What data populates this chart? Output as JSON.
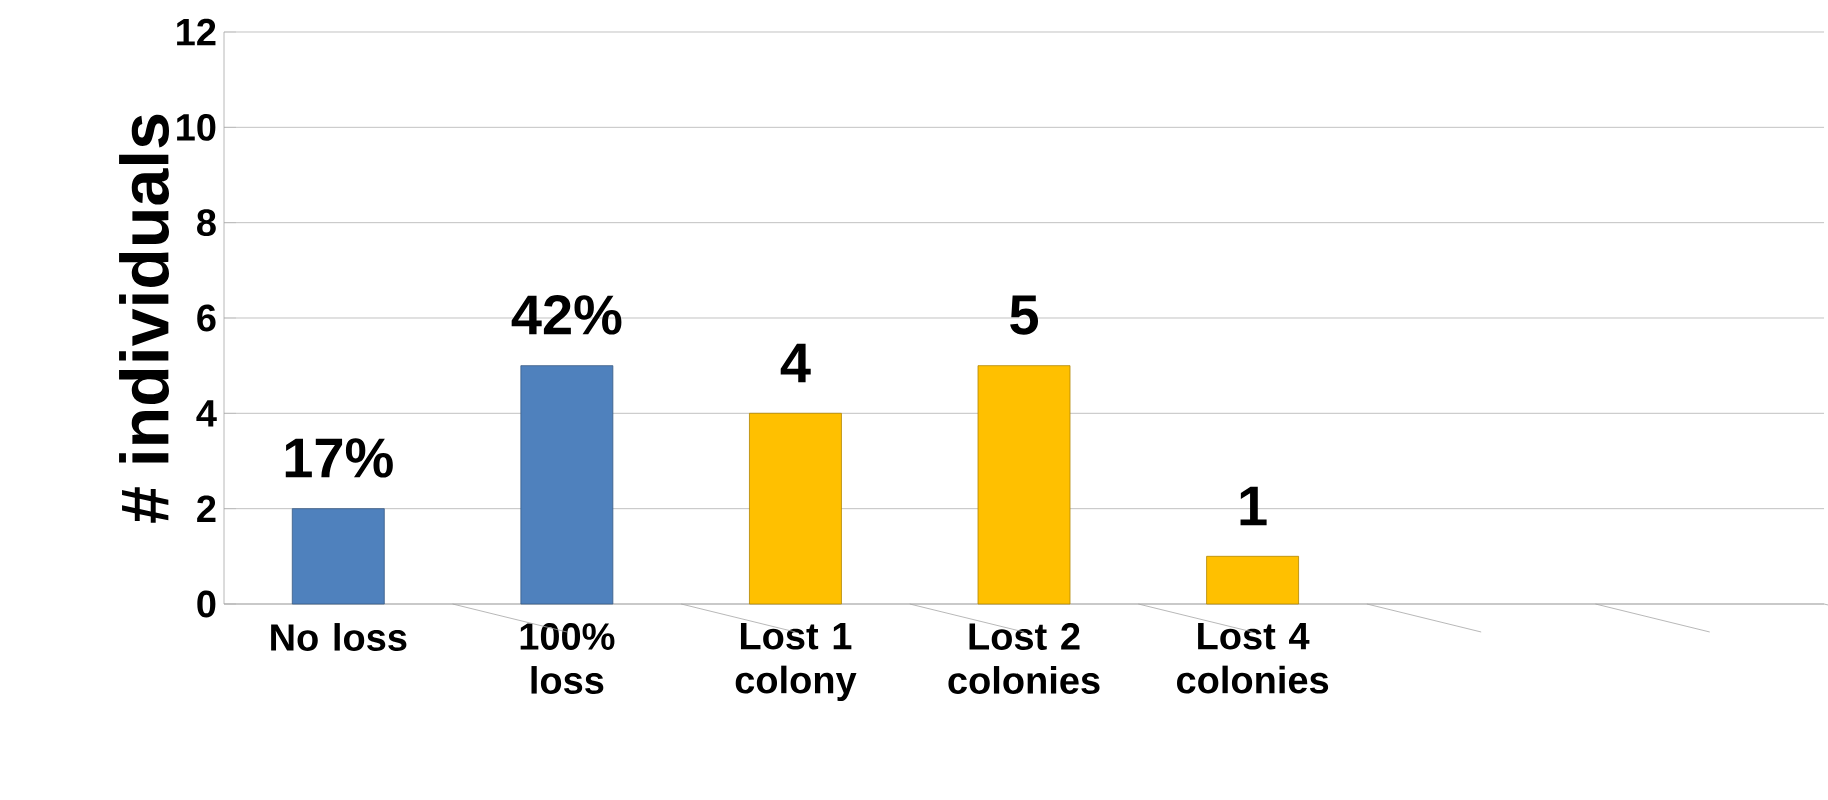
{
  "chart_data": {
    "type": "bar",
    "ylabel": "# individuals",
    "categories": [
      "No loss",
      "100% loss",
      "Lost 1 colony",
      "Lost 2 colonies",
      "Lost 4 colonies",
      null,
      null
    ],
    "values": [
      2,
      5,
      4,
      5,
      1,
      null,
      null
    ],
    "colors": [
      "#4f81bd",
      "#4f81bd",
      "#ffc000",
      "#ffc000",
      "#ffc000",
      null,
      null
    ],
    "value_labels": [
      null,
      null,
      "4",
      "5",
      "1",
      null,
      null
    ],
    "annotations": [
      {
        "text": "17%",
        "x": "No loss",
        "y": 2
      },
      {
        "text": "42%",
        "x": "100% loss",
        "y": 5
      }
    ],
    "ylim": [
      0,
      12
    ],
    "yticks": [
      0,
      2,
      4,
      6,
      8,
      10,
      12
    ],
    "grid": "y"
  }
}
